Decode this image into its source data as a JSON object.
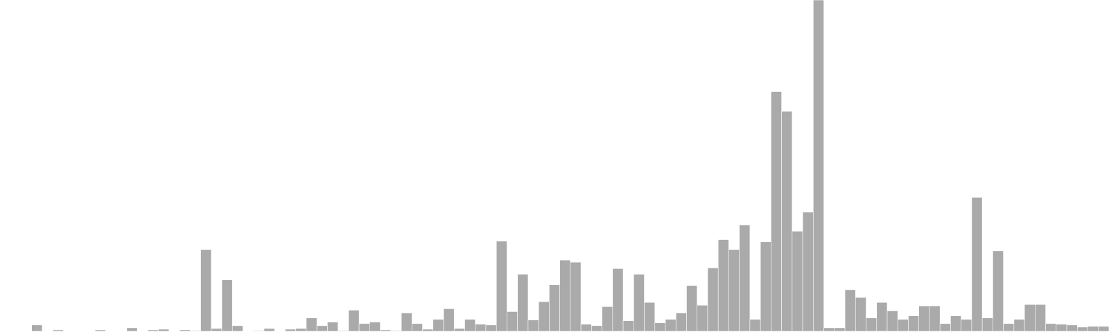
{
  "chart_data": {
    "type": "bar",
    "title": "",
    "xlabel": "",
    "ylabel": "",
    "grid": false,
    "legend": "none",
    "ylim": [
      0,
      470
    ],
    "bar_color": "#aaaaaa",
    "bar_edge_color": "#ffffff",
    "values": [
      0,
      0,
      0,
      9,
      0,
      2,
      0,
      0,
      0,
      2,
      0,
      0,
      5,
      0,
      2,
      3,
      0,
      2,
      1,
      116,
      4,
      73,
      8,
      0,
      1,
      4,
      0,
      3,
      4,
      19,
      8,
      13,
      1,
      30,
      11,
      13,
      2,
      1,
      26,
      11,
      3,
      17,
      32,
      4,
      17,
      10,
      9,
      128,
      28,
      81,
      16,
      42,
      66,
      101,
      98,
      10,
      8,
      35,
      89,
      15,
      81,
      41,
      12,
      17,
      26,
      65,
      37,
      90,
      130,
      116,
      151,
      17,
      127,
      340,
      312,
      142,
      169,
      470,
      5,
      5,
      59,
      48,
      19,
      41,
      29,
      17,
      22,
      36,
      36,
      11,
      22,
      17,
      190,
      19,
      114,
      11,
      17,
      38,
      38,
      11,
      10,
      9,
      6,
      7,
      7
    ]
  }
}
